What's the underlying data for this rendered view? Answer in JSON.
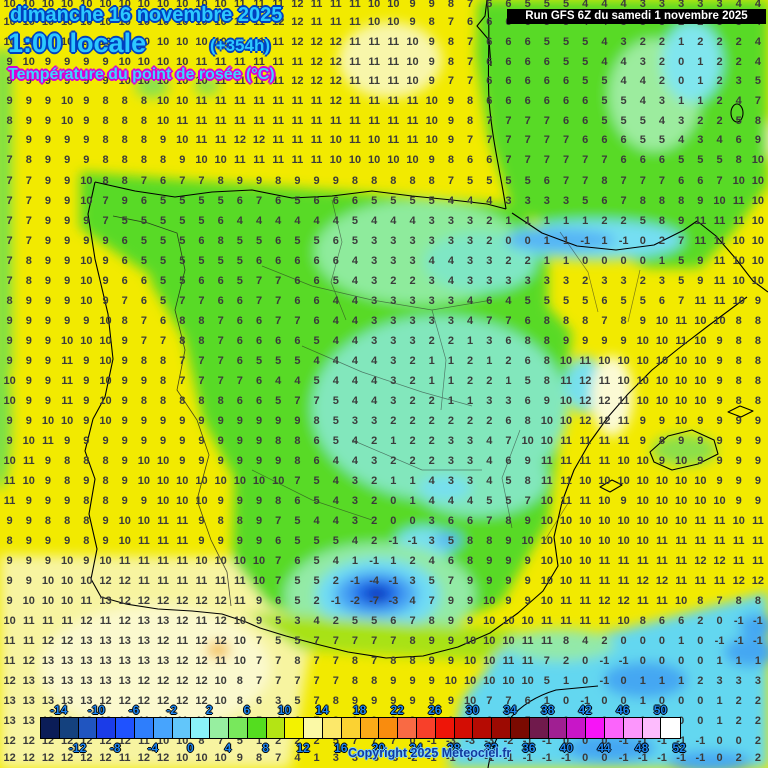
{
  "header": {
    "date_line": "dimanche 16 novembre 2025",
    "time_line": "1:00 locale",
    "offset": "(+354h)",
    "param_line": "Température du point de rosée (°C)",
    "run_info": "Run GFS 6Z du samedi 1 novembre 2025"
  },
  "footer": {
    "copyright": "Copyright 2025 Meteociel.fr"
  },
  "colors": {
    "header_cyan": "#2cc8ff",
    "header_outline_navy": "#0040c0",
    "param_outline_magenta": "#d400d4",
    "scale_label_blue": "#1d86f0",
    "number_gray": "#3b3b3b",
    "base_yellow": "#f2ea00",
    "sea_cyan": "#63d7f0"
  },
  "scale": {
    "unit": "°C",
    "start": -16,
    "end": 52,
    "step": 2,
    "top_labels": [
      "-14",
      "-10",
      "-6",
      "-2",
      "2",
      "6",
      "10",
      "14",
      "18",
      "22",
      "26",
      "30",
      "34",
      "38",
      "42",
      "46",
      "50"
    ],
    "bottom_labels": [
      "-12",
      "-8",
      "-4",
      "0",
      "4",
      "8",
      "12",
      "16",
      "20",
      "24",
      "28",
      "32",
      "36",
      "40",
      "44",
      "48",
      "52"
    ],
    "colors": [
      "#0b1d57",
      "#14417e",
      "#2055c0",
      "#1b3ce8",
      "#1f52ff",
      "#2e7efc",
      "#47a4fd",
      "#62c6fa",
      "#8af2f8",
      "#97efa0",
      "#78e85c",
      "#54dd1f",
      "#b4e414",
      "#f3f200",
      "#fbf9a6",
      "#fce86a",
      "#fbd232",
      "#fbab18",
      "#f98c0e",
      "#f96a44",
      "#f8402a",
      "#ee1508",
      "#d30d04",
      "#b50b03",
      "#9c0a02",
      "#7a0a01",
      "#701a4c",
      "#a01f92",
      "#c816c8",
      "#f714f7",
      "#fb64fb",
      "#fc96fc",
      "#fdbcfd",
      "#ffffff"
    ]
  },
  "map": {
    "region": "Iberian Peninsula",
    "grid_rows": [
      "10 10 10 10 10 10 10 10 10 10 10 10 11 11 11 12 11 11 11 10 10 9 9 8 7 6 6 5 5 5 4 4 4 3 3 3 3 3 4 4",
      "10 10 10 10 10 10 10 10 10 10 10 10 11 11 12 12 11 11 11 10 10 9 8 7 6 6 6 6 5 5 4 4 3 3 3 2 2 3 3 4",
      "10 10 10 10 10 10 10 10 10 10 10 10 11 11 11 12 12 12 11 11 11 10 9 8 7 6 6 6 5 5 5 4 3 2 2 1 2 2 2 4",
      "9 10 9 9 9 9 10 10 10 10 11 11 11 11 11 11 12 12 11 11 11 10 9 8 7 6 6 6 6 5 5 4 4 3 2 0 1 2 2 4",
      "9 9 9 9 9 9 10 10 10 10 10 11 11 11 11 12 12 12 11 11 11 10 9 7 7 6 6 6 6 6 5 5 4 4 2 0 1 2 3 5",
      "9 9 9 10 9 8 8 8 10 10 11 11 11 11 11 11 11 12 11 11 11 11 10 9 8 6 6 6 6 6 6 5 5 4 3 1 1 2 4 7",
      "8 9 9 10 9 8 8 8 10 11 11 11 11 11 11 11 11 11 11 11 11 11 10 9 8 7 7 7 7 6 6 5 5 5 4 3 2 2 5 8",
      "7 9 9 9 9 8 8 8 9 10 11 11 12 12 11 11 11 10 11 10 11 11 10 9 7 7 7 7 7 7 6 6 6 5 5 4 3 4 6 9",
      "7 8 9 9 9 8 8 8 8 9 10 10 11 11 11 11 11 10 10 10 10 10 9 8 6 6 7 7 7 7 7 7 6 6 6 5 5 5 8 10",
      "7 7 9 9 10 8 8 7 6 7 7 8 9 9 8 9 9 9 8 8 8 8 8 7 5 5 5 5 6 7 7 8 7 7 7 6 6 7 10 10",
      "7 7 9 9 10 7 9 6 5 5 5 5 6 7 6 5 6 6 6 5 5 5 5 4 4 4 3 3 3 3 5 6 7 8 8 8 9 10 11 10",
      "7 7 9 9 9 7 5 5 5 5 5 6 4 4 4 4 4 4 5 4 4 4 3 3 3 2 1 1 1 1 1 2 2 5 8 9 11 11 11 10",
      "7 7 9 9 9 9 6 5 5 5 6 8 5 5 6 5 5 6 5 3 3 3 3 3 3 2 0 0 1 1 -1 1 -1 0 2 7 11 11 10 10",
      "7 8 9 9 10 9 6 5 5 5 5 5 5 6 6 6 6 6 4 3 3 3 4 4 3 3 2 2 1 1 0 0 0 0 1 5 9 11 10 10",
      "7 8 9 9 10 9 6 6 5 5 6 6 5 7 7 6 6 5 4 3 2 2 3 4 3 3 3 3 3 3 2 3 3 2 3 5 9 11 10 10",
      "8 9 9 9 10 9 7 6 5 7 7 6 6 7 7 6 6 4 4 3 3 3 3 3 4 6 4 5 5 5 5 6 5 5 6 7 11 11 10 9",
      "9 9 9 9 9 10 8 7 6 8 8 7 6 6 7 7 6 4 4 3 3 3 3 3 4 7 7 6 8 8 8 7 8 9 10 11 10 10 8 8",
      "9 9 9 10 10 10 9 7 7 8 8 7 6 6 6 6 5 4 4 3 3 3 2 2 1 3 6 8 8 9 9 9 9 10 10 11 10 9 8 8",
      "9 9 9 11 9 10 9 8 8 7 7 7 6 5 5 5 4 4 4 4 3 2 1 1 2 1 2 6 8 10 11 10 10 10 10 10 10 9 8 8",
      "10 9 9 11 9 10 9 9 8 7 7 7 7 6 4 4 5 4 4 4 3 2 1 1 2 2 1 5 8 11 12 11 10 10 10 10 10 9 8 8",
      "10 9 9 11 9 10 9 8 8 8 8 8 6 6 5 7 7 5 4 4 3 2 2 1 1 3 3 6 9 10 12 12 11 10 10 10 10 9 8 8",
      "9 9 10 10 9 10 9 9 9 9 9 9 9 9 9 9 8 5 3 3 2 2 2 2 2 2 6 8 10 10 12 12 11 9 9 10 9 9 9 9",
      "9 10 11 9 9 9 9 9 9 9 9 9 9 9 8 8 6 5 4 2 1 2 2 3 3 4 7 10 10 11 11 11 11 9 8 9 9 9 9 9",
      "10 11 9 8 8 8 9 10 10 9 9 9 9 9 9 8 6 4 4 3 2 2 2 3 3 4 6 9 11 11 11 11 10 10 9 10 9 9 9 9",
      "11 10 9 8 9 8 9 10 10 10 10 10 10 10 10 7 5 4 3 2 1 1 4 3 3 4 5 8 11 11 10 10 10 10 10 10 10 9 9 9",
      "11 9 9 9 8 8 9 9 10 10 10 9 9 9 8 6 5 4 3 2 0 1 4 4 4 5 5 7 10 11 11 10 9 10 10 10 10 10 9 9",
      "9 9 8 8 8 9 10 10 11 11 9 8 8 9 7 5 4 4 3 2 0 0 3 6 6 7 8 9 10 10 10 10 10 10 10 10 11 11 10 11",
      "8 9 9 9 8 9 10 11 11 11 9 9 9 9 6 5 5 5 4 2 -1 -1 3 5 8 8 9 10 10 10 10 10 10 10 11 11 11 11 11 11",
      "9 9 9 10 9 10 11 11 11 11 10 10 10 10 7 6 5 4 1 -1 1 2 4 6 8 9 9 9 10 10 10 11 11 11 11 11 12 12 11 11",
      "9 9 10 10 10 12 12 11 11 11 11 11 11 10 7 5 5 2 -1 -4 -1 3 5 7 9 9 9 9 10 10 11 11 11 12 12 11 11 11 12 12",
      "9 10 10 10 11 13 12 12 12 12 12 12 11 9 6 5 2 -1 -2 -7 -3 4 7 9 9 10 9 9 10 11 11 12 12 11 11 10 8 7 8 8",
      "10 11 11 11 12 11 12 13 13 12 11 12 10 9 5 3 4 2 5 5 6 7 8 9 9 10 10 10 11 11 11 11 10 8 6 6 2 0 -1 -1",
      "11 11 12 12 13 13 13 13 12 11 12 12 10 7 5 5 7 7 7 7 7 8 9 9 10 10 10 11 11 8 4 2 0 0 0 1 0 -1 -1 -1",
      "11 12 13 13 13 13 13 13 13 12 12 11 10 7 7 8 7 7 8 7 8 8 9 9 10 10 11 11 7 2 0 -1 -1 0 0 0 0 1 1 1",
      "12 13 13 13 13 13 13 12 12 12 12 10 8 7 7 7 7 7 8 8 9 9 9 10 10 10 10 10 5 1 0 -1 0 1 1 1 2 3 3 3",
      "13 13 13 13 13 12 12 12 12 12 12 10 8 6 3 5 7 8 9 9 9 9 9 9 10 7 7 6 1 0 -1 0 0 1 0 0 0 1 2 2",
      "13 13 12 12 12 12 12 11 11 11 11 9 7 5 4 6 7 8 9 9 9 9 9 9 9 6 6 5 1 0 -1 0 0 0 0 0 0 1 2 2",
      "12 12 12 12 12 12 12 11 10 10 8 7 5 1 2 2 2 5 7 7 7 0 -1 -3 -3 -3 -2 -1 -1 0 0 0 -1 -1 -1 -1 -1 0 0 2",
      "12 12 12 12 12 12 11 12 12 10 10 10 9 8 7 4 1 3 3 -3 -3 -2 -1 -1 0 -1 -1 -1 -1 -1 0 0 -1 -1 -1 -1 -1 0 2 2"
    ]
  }
}
